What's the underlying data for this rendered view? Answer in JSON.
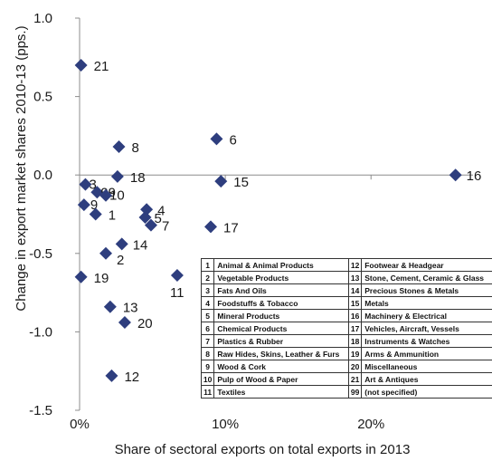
{
  "chart_data": {
    "type": "scatter",
    "title": "",
    "xlabel": "Share of sectoral exports on total  exports in 2013",
    "ylabel": "Change in export market shares 2010-13 (pps.)",
    "xlim": [
      0,
      0.27
    ],
    "ylim": [
      -1.5,
      1.0
    ],
    "x_ticks": [
      "0%",
      "10%",
      "20%"
    ],
    "y_ticks": [
      "1.0",
      "0.5",
      "0.0",
      "-0.5",
      "-1.0",
      "-1.5"
    ],
    "marker_color": "#2e3e7e",
    "points": [
      {
        "label": "21",
        "x": 0.001,
        "y": 0.7
      },
      {
        "label": "8",
        "x": 0.027,
        "y": 0.18
      },
      {
        "label": "6",
        "x": 0.094,
        "y": 0.23
      },
      {
        "label": "16",
        "x": 0.258,
        "y": 0.0
      },
      {
        "label": "3",
        "x": 0.004,
        "y": -0.06
      },
      {
        "label": "18",
        "x": 0.026,
        "y": -0.01
      },
      {
        "label": "15",
        "x": 0.097,
        "y": -0.04
      },
      {
        "label": "99",
        "x": 0.012,
        "y": -0.11
      },
      {
        "label": "10",
        "x": 0.018,
        "y": -0.13
      },
      {
        "label": "9",
        "x": 0.003,
        "y": -0.19
      },
      {
        "label": "1",
        "x": 0.011,
        "y": -0.25
      },
      {
        "label": "4",
        "x": 0.046,
        "y": -0.22
      },
      {
        "label": "5",
        "x": 0.045,
        "y": -0.27
      },
      {
        "label": "7",
        "x": 0.049,
        "y": -0.32
      },
      {
        "label": "17",
        "x": 0.09,
        "y": -0.33
      },
      {
        "label": "14",
        "x": 0.029,
        "y": -0.44
      },
      {
        "label": "2",
        "x": 0.018,
        "y": -0.5
      },
      {
        "label": "19",
        "x": 0.001,
        "y": -0.65
      },
      {
        "label": "11",
        "x": 0.067,
        "y": -0.64
      },
      {
        "label": "13",
        "x": 0.021,
        "y": -0.84
      },
      {
        "label": "20",
        "x": 0.031,
        "y": -0.94
      },
      {
        "label": "12",
        "x": 0.022,
        "y": -1.28
      }
    ],
    "legend_table": [
      [
        "1",
        "Animal & Animal Products",
        "12",
        "Footwear & Headgear"
      ],
      [
        "2",
        "Vegetable Products",
        "13",
        "Stone, Cement, Ceramic & Glass"
      ],
      [
        "3",
        "Fats And Oils",
        "14",
        "Precious Stones & Metals"
      ],
      [
        "4",
        "Foodstuffs & Tobacco",
        "15",
        "Metals"
      ],
      [
        "5",
        "Mineral Products",
        "16",
        "Machinery & Electrical"
      ],
      [
        "6",
        "Chemical Products",
        "17",
        "Vehicles, Aircraft, Vessels"
      ],
      [
        "7",
        "Plastics & Rubber",
        "18",
        "Instruments & Watches"
      ],
      [
        "8",
        "Raw Hides, Skins, Leather & Furs",
        "19",
        "Arms & Ammunition"
      ],
      [
        "9",
        "Wood & Cork",
        "20",
        "Miscellaneous"
      ],
      [
        "10",
        "Pulp of Wood & Paper",
        "21",
        "Art & Antiques"
      ],
      [
        "11",
        "Textiles",
        "99",
        "(not specified)"
      ]
    ]
  }
}
